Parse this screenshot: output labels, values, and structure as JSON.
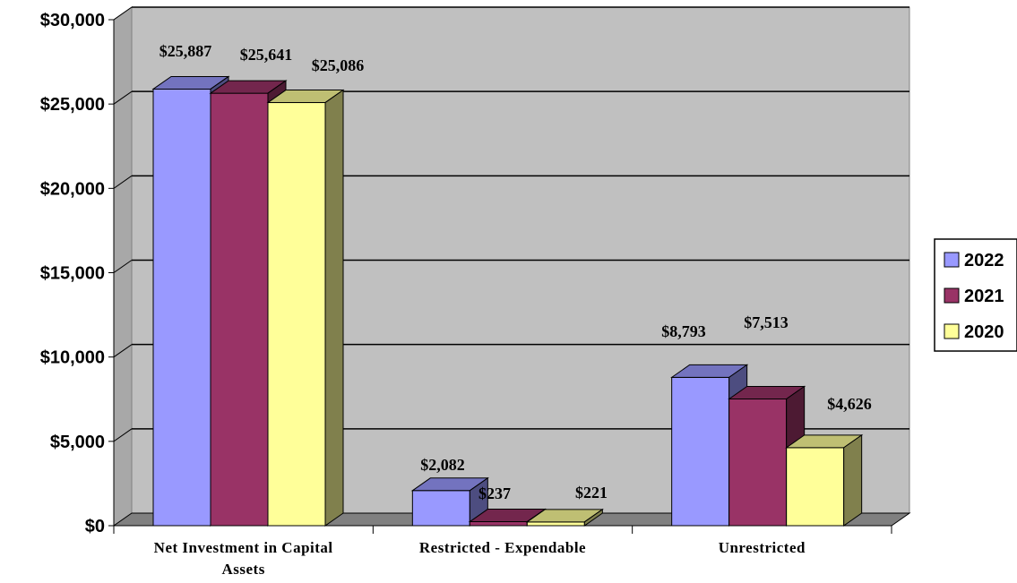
{
  "chart_data": {
    "type": "bar",
    "categories": [
      "Net Investment in Capital Assets",
      "Restricted - Expendable",
      "Unrestricted"
    ],
    "category_label_lines": [
      [
        "Net Investment in Capital",
        "Assets"
      ],
      [
        "Restricted - Expendable"
      ],
      [
        "Unrestricted"
      ]
    ],
    "series": [
      {
        "name": "2022",
        "values": [
          25887,
          2082,
          8793
        ],
        "labels": [
          "$25,887",
          "$2,082",
          "$8,793"
        ],
        "color": "#9999ff"
      },
      {
        "name": "2021",
        "values": [
          25641,
          237,
          7513
        ],
        "labels": [
          "$25,641",
          "$237",
          "$7,513"
        ],
        "color": "#993366"
      },
      {
        "name": "2020",
        "values": [
          25086,
          221,
          4626
        ],
        "labels": [
          "$25,086",
          "$221",
          "$4,626"
        ],
        "color": "#ffff99"
      }
    ],
    "y_ticks": [
      "$0",
      "$5,000",
      "$10,000",
      "$15,000",
      "$20,000",
      "$25,000",
      "$30,000"
    ],
    "ylim": [
      0,
      30000
    ],
    "grid": true,
    "legend_position": "right",
    "style": "3d-clustered-column",
    "colors": {
      "wall": "#c0c0c0",
      "floor": "#808080",
      "gridline": "#000000"
    }
  }
}
